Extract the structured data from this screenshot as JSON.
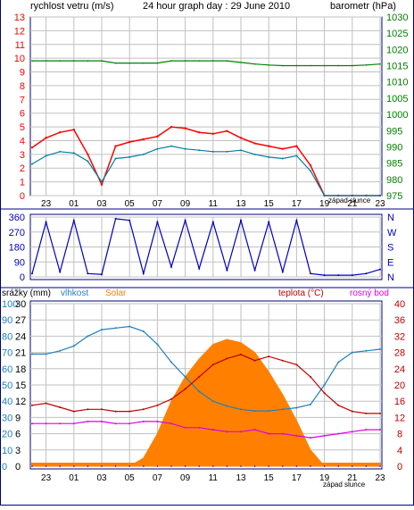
{
  "header": {
    "wind_title": "rychlost vetru (m/s)",
    "center_title": "24 hour graph day : 29 June 2010",
    "baro_title": "barometr (hPa)"
  },
  "x_ticks": [
    "23",
    "01",
    "03",
    "05",
    "07",
    "09",
    "11",
    "13",
    "15",
    "17",
    "19",
    "21",
    "23"
  ],
  "sunset_label": "západ slunce",
  "colors": {
    "wind": "#ff0000",
    "wind_avg": "#0080a0",
    "barometer": "#008000",
    "direction": "#0000c0",
    "humidity": "#2080c0",
    "solar": "#ff8000",
    "temperature": "#c00000",
    "dewpoint": "#e000e0",
    "rain": "#0000ff",
    "frame": "#000080"
  },
  "chart_data": [
    {
      "type": "line",
      "title": "24 hour graph day : 29 June 2010",
      "xlabel": "",
      "ylabel": "rychlost vetru (m/s)",
      "ylim": [
        0,
        13
      ],
      "y_ticks": [
        "0",
        "1",
        "2",
        "3",
        "4",
        "5",
        "6",
        "7",
        "8",
        "9",
        "10",
        "11",
        "12",
        "13"
      ],
      "y2label": "barometr (hPa)",
      "y2lim": [
        975,
        1030
      ],
      "y2_ticks": [
        "975",
        "980",
        "985",
        "990",
        "995",
        "1000",
        "1005",
        "1010",
        "1015",
        "1020",
        "1025",
        "1030"
      ],
      "x_hours": [
        22,
        23,
        0,
        1,
        2,
        3,
        4,
        5,
        6,
        7,
        8,
        9,
        10,
        11,
        12,
        13,
        14,
        15,
        16,
        17,
        18,
        19,
        20,
        21,
        22,
        23
      ],
      "series": [
        {
          "key": "gust",
          "values": [
            3.5,
            4.2,
            4.6,
            4.8,
            3.0,
            0.8,
            3.6,
            3.9,
            4.1,
            4.3,
            5.0,
            4.9,
            4.6,
            4.5,
            4.7,
            4.2,
            3.8,
            3.6,
            3.4,
            3.6,
            2.2,
            0,
            0,
            0,
            0,
            0
          ]
        },
        {
          "key": "average",
          "values": [
            2.3,
            2.9,
            3.2,
            3.1,
            2.5,
            1.0,
            2.7,
            2.8,
            3.0,
            3.4,
            3.6,
            3.4,
            3.3,
            3.2,
            3.2,
            3.3,
            3.0,
            2.8,
            2.7,
            2.9,
            1.8,
            0,
            0,
            0,
            0,
            0
          ]
        },
        {
          "key": "pressure",
          "values": [
            1016.5,
            1016.5,
            1016.5,
            1016.5,
            1016.5,
            1016.5,
            1015.8,
            1015.8,
            1015.8,
            1015.8,
            1016.5,
            1016.5,
            1016.5,
            1016.5,
            1016.5,
            1016,
            1015.5,
            1015.2,
            1015,
            1015,
            1015,
            1015,
            1015,
            1015,
            1015.2,
            1015.5
          ]
        }
      ]
    },
    {
      "type": "line",
      "ylabel_ticks": [
        "360",
        "270",
        "180",
        "90",
        "0"
      ],
      "ylim": [
        0,
        360
      ],
      "right_labels": [
        "N",
        "W",
        "S",
        "E",
        "N"
      ],
      "x_hours": [
        22,
        23,
        0,
        1,
        2,
        3,
        4,
        5,
        6,
        7,
        8,
        9,
        10,
        11,
        12,
        13,
        14,
        15,
        16,
        17,
        18,
        19,
        20,
        21,
        22,
        23
      ],
      "series": [
        {
          "key": "direction",
          "values": [
            20,
            330,
            30,
            340,
            20,
            15,
            350,
            340,
            20,
            330,
            60,
            340,
            50,
            330,
            40,
            340,
            40,
            330,
            30,
            340,
            20,
            10,
            10,
            10,
            20,
            45
          ]
        }
      ]
    },
    {
      "type": "area",
      "left_headers": {
        "rain": "srážky (mm)",
        "humidity": "vlhkost",
        "solar": "Solar"
      },
      "right_headers": {
        "temperature": "teplota (°C)",
        "dewpoint": "rosný bod"
      },
      "rain_ticks": [
        "0",
        "3",
        "6",
        "9",
        "12",
        "15",
        "18",
        "21",
        "24",
        "27",
        "30"
      ],
      "humidity_ticks": [
        "0",
        "10",
        "20",
        "30",
        "40",
        "50",
        "60",
        "70",
        "80",
        "90",
        "100"
      ],
      "temperature_ticks": [
        "0",
        "4",
        "8",
        "12",
        "16",
        "20",
        "24",
        "28",
        "32",
        "36",
        "40"
      ],
      "temperature_lim": [
        0,
        40
      ],
      "humidity_lim": [
        0,
        100
      ],
      "x_hours": [
        22,
        23,
        0,
        1,
        2,
        3,
        4,
        5,
        6,
        7,
        8,
        9,
        10,
        11,
        12,
        13,
        14,
        15,
        16,
        17,
        18,
        19,
        20,
        21,
        22,
        23
      ],
      "series": [
        {
          "key": "solar_pct",
          "values": [
            0,
            0,
            0,
            0,
            0,
            0,
            0,
            0,
            5,
            20,
            40,
            55,
            66,
            75,
            78,
            76,
            70,
            58,
            44,
            28,
            10,
            0,
            0,
            0,
            0,
            0
          ]
        },
        {
          "key": "humidity",
          "values": [
            69,
            69,
            71,
            74,
            80,
            84,
            85,
            86,
            83,
            75,
            64,
            55,
            46,
            40,
            37,
            35,
            34,
            34,
            35,
            36,
            38,
            50,
            64,
            70,
            71,
            72
          ]
        },
        {
          "key": "temperature",
          "values": [
            15,
            15.5,
            14.5,
            13.5,
            14,
            14,
            13.5,
            13.5,
            14,
            15,
            16.5,
            19,
            22,
            25,
            26.5,
            27.5,
            26,
            27,
            26,
            25,
            22,
            18,
            15,
            13.5,
            13,
            13
          ]
        },
        {
          "key": "dewpoint",
          "values": [
            10.5,
            10.5,
            10.5,
            10.5,
            11,
            11,
            10.5,
            10.5,
            11,
            11,
            10.5,
            9.5,
            9.5,
            9,
            8.5,
            8.5,
            9,
            8,
            8,
            7.5,
            7,
            7.5,
            8,
            8.5,
            9,
            9
          ]
        },
        {
          "key": "rain",
          "values": [
            0,
            0,
            0,
            0,
            0,
            0,
            0,
            0,
            0,
            0,
            0,
            0,
            0,
            0,
            0,
            0,
            0,
            0,
            0,
            0,
            0,
            0,
            0,
            0,
            0,
            0
          ]
        }
      ]
    }
  ]
}
